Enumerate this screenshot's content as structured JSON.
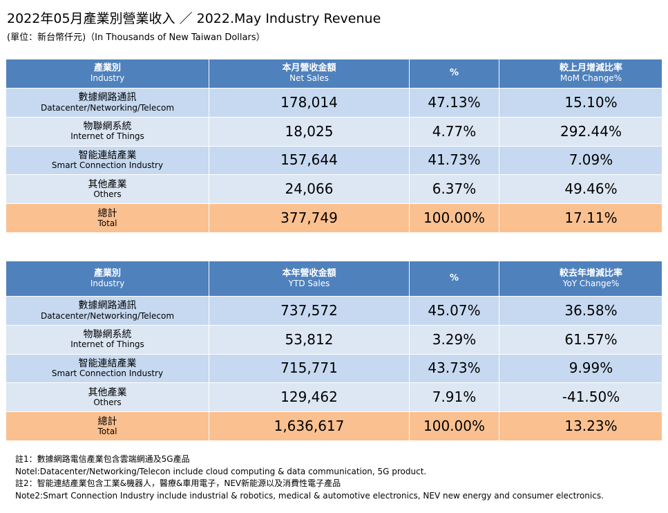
{
  "title": "2022年05月產業別營業收入 ／ 2022.May Industry Revenue",
  "subtitle": "(單位：新台幣仟元)（In Thousands of New Taiwan Dollars）",
  "tables": [
    {
      "header": [
        [
          "產業別",
          "Industry"
        ],
        [
          "本月營收金額",
          "Net Sales"
        ],
        [
          "%"
        ],
        [
          "較上月增減比率",
          "MoM Change%"
        ]
      ],
      "rows": [
        [
          [
            "數據網路通訊",
            "Datacenter/Networking/Telecom"
          ],
          "178,014",
          "47.13%",
          "15.10%"
        ],
        [
          [
            "物聯網系統",
            "Internet of Things"
          ],
          "18,025",
          "4.77%",
          "292.44%"
        ],
        [
          [
            "智能連結產業",
            "Smart Connection Industry"
          ],
          "157,644",
          "41.73%",
          "7.09%"
        ],
        [
          [
            "其他產業",
            "Others"
          ],
          "24,066",
          "6.37%",
          "49.46%"
        ],
        [
          [
            "總計",
            "Total"
          ],
          "377,749",
          "100.00%",
          "17.11%"
        ]
      ]
    },
    {
      "header": [
        [
          "產業別",
          "Industry"
        ],
        [
          "本年營收金額",
          "YTD Sales"
        ],
        [
          "%"
        ],
        [
          "較去年增減比率",
          "YoY Change%"
        ]
      ],
      "rows": [
        [
          [
            "數據網路通訊",
            "Datacenter/Networking/Telecom"
          ],
          "737,572",
          "45.07%",
          "36.58%"
        ],
        [
          [
            "物聯網系統",
            "Internet of Things"
          ],
          "53,812",
          "3.29%",
          "61.57%"
        ],
        [
          [
            "智能連結產業",
            "Smart Connection Industry"
          ],
          "715,771",
          "43.73%",
          "9.99%"
        ],
        [
          [
            "其他產業",
            "Others"
          ],
          "129,462",
          "7.91%",
          "-41.50%"
        ],
        [
          [
            "總計",
            "Total"
          ],
          "1,636,617",
          "100.00%",
          "13.23%"
        ]
      ]
    }
  ],
  "notes": [
    "註1：數據網路電信產業包含雲端網通及5G產品",
    "Notel:Datacenter/Networking/Telecon include cloud computing & data communication, 5G product.",
    "註2：智能連結產業包含工業&機器人，醫療&車用電子，NEV新能源以及消費性電子產品",
    "Note2:Smart Connection Industry include industrial & robotics, medical & automotive electronics, NEV new energy and consumer electronics."
  ]
}
